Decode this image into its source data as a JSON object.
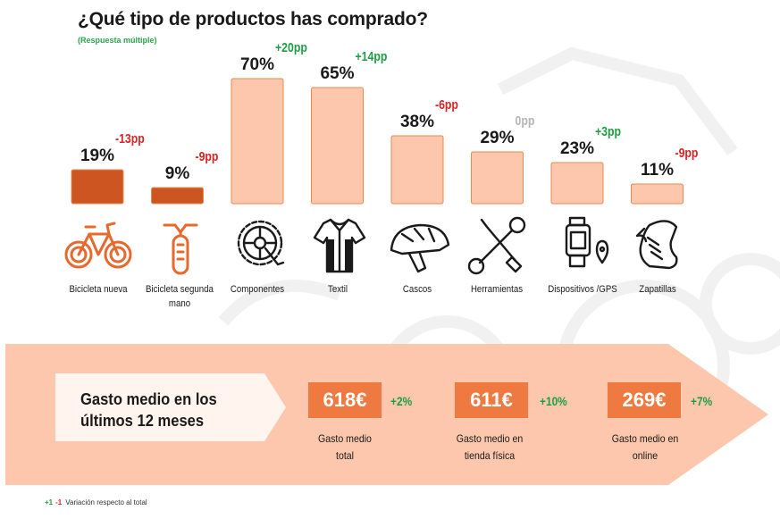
{
  "chart_data": {
    "type": "bar",
    "title": "¿Qué tipo de productos has comprado?",
    "subtitle": "(Respuesta múltiple)",
    "categories": [
      "Bicicleta nueva",
      "Bicicleta segunda mano",
      "Componentes",
      "Textil",
      "Cascos",
      "Herramientas",
      "Dispositivos /GPS",
      "Zapatillas"
    ],
    "values": [
      19,
      9,
      70,
      65,
      38,
      29,
      23,
      11
    ],
    "value_labels": [
      "19%",
      "9%",
      "70%",
      "65%",
      "38%",
      "29%",
      "23%",
      "11%"
    ],
    "variations": [
      "-13pp",
      "-9pp",
      "+20pp",
      "+14pp",
      "-6pp",
      "0pp",
      "+3pp",
      "-9pp"
    ],
    "variation_colors": [
      "#d92323",
      "#d92323",
      "#1e9e43",
      "#1e9e43",
      "#d92323",
      "#b5b5b5",
      "#1e9e43",
      "#d92323"
    ],
    "bar_colors": [
      "#cc5521",
      "#cc5521",
      "#fcc7ad",
      "#fcc7ad",
      "#fcc7ad",
      "#fcc7ad",
      "#fcc7ad",
      "#fcc7ad"
    ],
    "ylim": [
      0,
      100
    ],
    "xlabel": "",
    "ylabel": ""
  },
  "icons": [
    "bicycle-icon",
    "used-bicycle-icon",
    "gear-icon",
    "jersey-icon",
    "helmet-icon",
    "tools-icon",
    "gps-watch-icon",
    "shoe-icon"
  ],
  "spending": {
    "title_line1": "Gasto medio en los",
    "title_line2": "últimos 12 meses",
    "items": [
      {
        "value": "618€",
        "delta": "+2%",
        "label_line1": "Gasto medio",
        "label_line2": "total"
      },
      {
        "value": "611€",
        "delta": "+10%",
        "label_line1": "Gasto medio en",
        "label_line2": "tienda física"
      },
      {
        "value": "269€",
        "delta": "+7%",
        "label_line1": "Gasto medio en",
        "label_line2": "online"
      }
    ]
  },
  "legend": {
    "pos": "+1",
    "neg": "-1",
    "text": "Variación respecto al total"
  },
  "colors": {
    "accent": "#ee7a41",
    "dark_bar": "#cc5521",
    "light_bar": "#fcc7ad",
    "positive": "#1e9e43",
    "negative": "#d92323",
    "neutral": "#b5b5b5",
    "banner": "#fcc7ad"
  }
}
